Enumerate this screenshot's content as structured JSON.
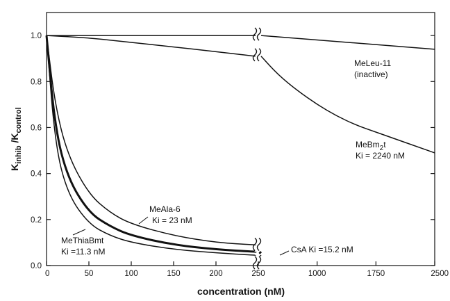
{
  "chart_data": {
    "type": "line",
    "xlabel": "concentration (nM)",
    "ylabel_main": "K",
    "ylabel_sub1": "inhib",
    "ylabel_mid": " /K",
    "ylabel_sub2": "control",
    "ylim": [
      0,
      1.1
    ],
    "yticks": [
      0.0,
      0.2,
      0.4,
      0.6,
      0.8,
      1.0
    ],
    "ytick_labels": [
      "0.0",
      "0.2",
      "0.4",
      "0.6",
      "0.8",
      "1.0"
    ],
    "x_segments": [
      {
        "range": [
          0,
          250
        ],
        "ticks": [
          0,
          50,
          100,
          150,
          200,
          250
        ]
      },
      {
        "range": [
          250,
          2500
        ],
        "ticks": [
          1000,
          1750,
          2500
        ]
      }
    ],
    "xtick_labels": [
      "0",
      "50",
      "100",
      "150",
      "200",
      "250",
      "1000",
      "1750",
      "2500"
    ],
    "axis_break_x": 250,
    "series": [
      {
        "name": "MeLeu-11",
        "x": [
          0,
          250,
          2500
        ],
        "y": [
          1.0,
          1.0,
          0.94
        ]
      },
      {
        "name": "MeBm2t",
        "x": [
          0,
          50,
          100,
          150,
          200,
          250,
          500,
          750,
          1000,
          1250,
          1500,
          1750,
          2000,
          2250,
          2500
        ],
        "y": [
          1.0,
          0.99,
          0.97,
          0.95,
          0.93,
          0.91,
          0.83,
          0.76,
          0.7,
          0.65,
          0.61,
          0.58,
          0.55,
          0.52,
          0.49
        ]
      },
      {
        "name": "MeAla-6",
        "x": [
          0,
          10,
          25,
          50,
          75,
          100,
          150,
          200,
          250
        ],
        "y": [
          1.0,
          0.7,
          0.48,
          0.31,
          0.23,
          0.18,
          0.13,
          0.1,
          0.09
        ]
      },
      {
        "name": "CsA",
        "x": [
          0,
          10,
          25,
          50,
          75,
          100,
          150,
          200,
          250,
          270
        ],
        "y": [
          1.0,
          0.6,
          0.38,
          0.23,
          0.17,
          0.13,
          0.09,
          0.07,
          0.06,
          0.055
        ]
      },
      {
        "name": "MeThiaBmt",
        "x": [
          0,
          10,
          25,
          50,
          75,
          100,
          150,
          200,
          250,
          270
        ],
        "y": [
          1.0,
          0.53,
          0.31,
          0.18,
          0.13,
          0.1,
          0.07,
          0.055,
          0.045,
          0.04
        ]
      }
    ],
    "annotations": [
      {
        "id": "meleu",
        "lines": [
          "MeLeu-11",
          "(inactive)"
        ]
      },
      {
        "id": "mebm",
        "line1_pre": "MeBm",
        "line1_sub": "2",
        "line1_post": "t",
        "line2": "Ki = 2240 nM"
      },
      {
        "id": "meala",
        "lines": [
          "MeAla-6",
          "Ki = 23 nM"
        ]
      },
      {
        "id": "methia",
        "lines": [
          "MeThiaBmt",
          "Ki =11.3 nM"
        ]
      },
      {
        "id": "csa",
        "lines": [
          "CsA  Ki =15.2 nM"
        ]
      }
    ]
  }
}
